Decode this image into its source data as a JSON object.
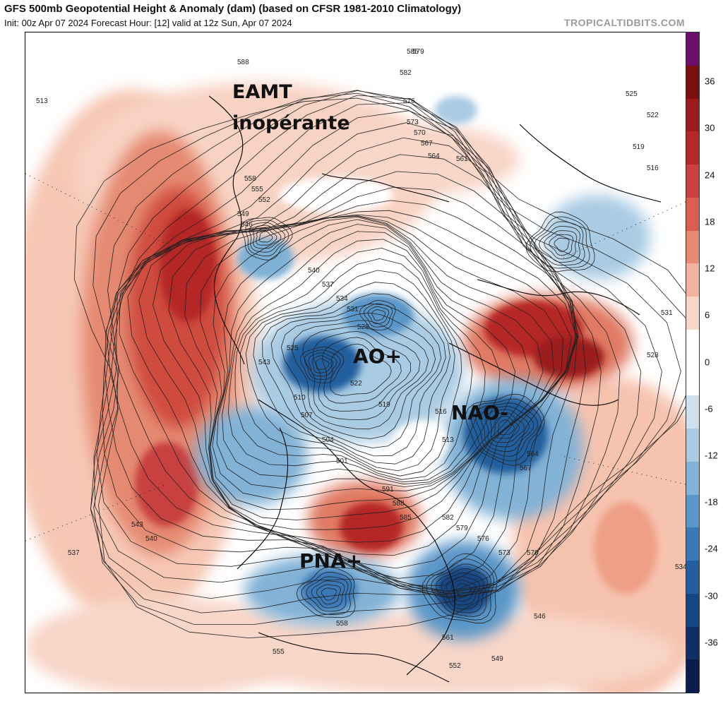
{
  "header": {
    "title": "GFS 500mb Geopotential Height & Anomaly (dam) (based on CFSR 1981-2010 Climatology)",
    "subtitle": "Init: 00z Apr 07 2024   Forecast Hour: [12]   valid at 12z Sun, Apr 07 2024",
    "watermark": "TROPICALTIDBITS.COM"
  },
  "annotations": {
    "eamt_line1": "EAMT",
    "eamt_line2": "inopérante",
    "ao": "AO+",
    "nao": "NAO-",
    "pna": "PNA+"
  },
  "contour_labels": [
    "588",
    "585",
    "582",
    "579",
    "576",
    "573",
    "570",
    "567",
    "564",
    "561",
    "558",
    "555",
    "552",
    "549",
    "546",
    "543",
    "540",
    "537",
    "534",
    "531",
    "528",
    "525",
    "522",
    "519",
    "516",
    "513",
    "510",
    "507",
    "504",
    "501",
    "591"
  ],
  "colorbar": {
    "ticks": [
      "36",
      "30",
      "24",
      "18",
      "12",
      "6",
      "0",
      "-6",
      "-12",
      "-18",
      "-24",
      "-30",
      "-36"
    ],
    "colors": [
      "#6b0f6b",
      "#7a1010",
      "#9b1b1b",
      "#b52828",
      "#c84040",
      "#d96050",
      "#e68a73",
      "#f2b29e",
      "#f8d6c8",
      "#ffffff",
      "#ffffff",
      "#cfe1ee",
      "#aacbe2",
      "#82b2d6",
      "#5a96c8",
      "#3a78b6",
      "#245e9e",
      "#154684",
      "#0f2f66",
      "#0b1d4a"
    ]
  }
}
